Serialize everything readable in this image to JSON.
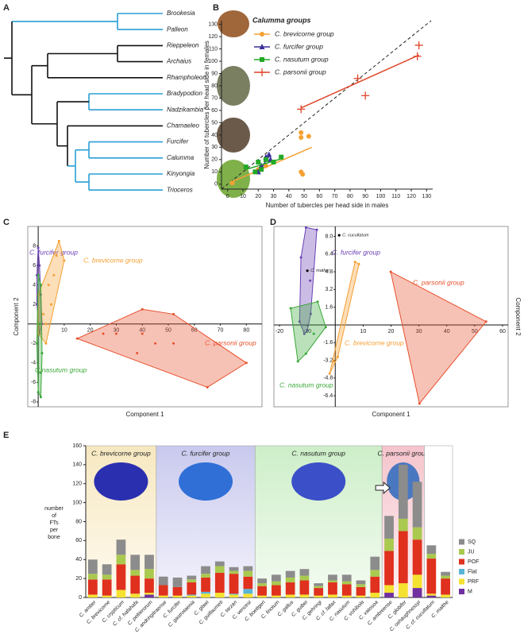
{
  "tree": {
    "label": "A",
    "taxa": [
      "Brookesia",
      "Palleon",
      "Rieppeleon",
      "Archaius",
      "Rhampholeon",
      "Bradypodion",
      "Nadzikambia*",
      "Chamaeleo",
      "Furcifer",
      "Calumma",
      "Kinyongia",
      "Trioceros"
    ]
  },
  "chart_data": [
    {
      "type": "scatter",
      "label": "B",
      "legend_title": "Calumma groups",
      "xlabel": "Number of tubercles per head side in males",
      "ylabel": "Number of tubercles per head side in females",
      "xlim": [
        -4,
        134
      ],
      "ylim": [
        -4,
        133
      ],
      "xticks": [
        0,
        10,
        20,
        30,
        40,
        50,
        60,
        70,
        80,
        90,
        100,
        110,
        120,
        130
      ],
      "yticks": [
        0,
        10,
        20,
        30,
        40,
        50,
        60,
        70,
        80,
        90,
        100,
        110,
        120,
        130
      ],
      "series": [
        {
          "name": "C. brevicorne group",
          "color": "#f5a033",
          "marker": "circle",
          "x": [
            3,
            20,
            25,
            48,
            48,
            53,
            48,
            49
          ],
          "values": [
            1,
            12,
            15,
            42,
            38,
            39,
            10,
            8
          ],
          "fit": {
            "x": [
              3,
              55
            ],
            "y": [
              2,
              30
            ]
          }
        },
        {
          "name": "C. furcifer group",
          "color": "#3b2f9a",
          "marker": "triangle",
          "x": [
            20,
            22,
            25,
            27,
            28
          ],
          "values": [
            10,
            15,
            22,
            24,
            20
          ],
          "fit": {
            "x": [
              20,
              28
            ],
            "y": [
              10,
              24
            ]
          }
        },
        {
          "name": "C. nasutum group",
          "color": "#22a826",
          "marker": "square",
          "x": [
            12,
            18,
            20,
            22,
            25,
            30,
            35
          ],
          "values": [
            14,
            10,
            18,
            12,
            20,
            18,
            22
          ],
          "fit": {
            "x": [
              12,
              36
            ],
            "y": [
              12,
              21
            ]
          }
        },
        {
          "name": "C. parsonii group",
          "color": "#e0452a",
          "marker": "plus",
          "x": [
            48,
            85,
            90,
            124,
            125
          ],
          "values": [
            61,
            86,
            72,
            104,
            113
          ],
          "fit": {
            "x": [
              48,
              125
            ],
            "y": [
              62,
              105
            ]
          }
        }
      ]
    },
    {
      "type": "pca",
      "label": "C",
      "xlabel": "Component 1",
      "ylabel": "Component 2",
      "xlim": [
        -4,
        86
      ],
      "ylim": [
        -8.5,
        10
      ],
      "xticks": [
        0,
        10,
        20,
        30,
        40,
        50,
        60,
        70,
        80
      ],
      "yticks": [
        8,
        6,
        4,
        2,
        -2,
        -4,
        -6,
        -8
      ],
      "series": [
        {
          "name": "C. furcifer group",
          "color": "#6a3fb5",
          "x": [
            0,
            0.5,
            1,
            1.5,
            0.5,
            -0.5,
            -0.5
          ],
          "values": [
            7.8,
            6,
            3,
            0,
            -1,
            2,
            5
          ]
        },
        {
          "name": "C. brevicorne group",
          "color": "#f5a033",
          "x": [
            8,
            10,
            3,
            0,
            0,
            4,
            5,
            6,
            2,
            7,
            3
          ],
          "values": [
            8.5,
            6.5,
            -2,
            -1,
            3,
            4,
            2,
            5,
            1,
            7,
            0
          ]
        },
        {
          "name": "C. parsonii group",
          "color": "#e8502d",
          "x": [
            15,
            40,
            52,
            80,
            65,
            40,
            45,
            52,
            38,
            30,
            25
          ],
          "values": [
            -1.5,
            1.5,
            1,
            -4,
            -6.5,
            -1,
            -2,
            -2,
            -3,
            -1,
            -1
          ]
        },
        {
          "name": "C.nasutum group",
          "color": "#3aa83a",
          "x": [
            1,
            0,
            -0.5,
            0,
            1,
            1.5,
            0.5,
            0.8
          ],
          "values": [
            -7.5,
            -7,
            -2,
            5,
            4,
            -3,
            0,
            -5
          ]
        }
      ]
    },
    {
      "type": "pca",
      "label": "D",
      "xlabel": "Component 1",
      "ylabel": "Component 2",
      "xlim": [
        -22,
        62
      ],
      "ylim": [
        -7.4,
        8.9
      ],
      "xticks": [
        -20,
        -10,
        10,
        20,
        30,
        40,
        50,
        60
      ],
      "yticks": [
        {
          "value": 8,
          "label": "8.0"
        },
        6.4,
        4.8,
        3.2,
        1.6,
        -1.6,
        -3.2,
        -4.8,
        -6.4
      ],
      "series": [
        {
          "name": "C. furcifer group",
          "color": "#6a3fb5",
          "x": [
            -10.5,
            -6.6,
            -8.8,
            -11.1,
            -12.8,
            -12.3,
            -9,
            -10
          ],
          "values": [
            8.8,
            8.6,
            1.0,
            -0.8,
            0.3,
            6.1,
            4,
            -0.5
          ]
        },
        {
          "name": "C. brevicorne group",
          "color": "#f5a033",
          "x": [
            7.1,
            8.5,
            0.9,
            -0.6,
            -2.0
          ],
          "values": [
            5.7,
            5.5,
            -2.9,
            -3.3,
            -4.4
          ]
        },
        {
          "name": "C. parsonii group",
          "color": "#e8502d",
          "x": [
            19.9,
            54.1,
            30.2
          ],
          "values": [
            4.8,
            0.3,
            -7.1
          ]
        },
        {
          "name": "C. nasutum group",
          "color": "#3aa83a",
          "x": [
            -16,
            -6.3,
            -3.4,
            -7.7,
            -10.5,
            -13.4
          ],
          "values": [
            1.5,
            2.1,
            -0.2,
            -0.8,
            -2.6,
            -3.3
          ]
        }
      ],
      "annotations": [
        {
          "text": "C. cucullatum",
          "x": 1.4,
          "y": 8.1
        },
        {
          "text": "C. mathei",
          "x": -10,
          "y": 4.9
        }
      ]
    },
    {
      "type": "stacked_bar",
      "label": "E",
      "ylabel": [
        "number",
        "of",
        "FTs",
        "per",
        "bone"
      ],
      "ylim": [
        0,
        160
      ],
      "yticks": [
        0,
        20,
        40,
        60,
        80,
        100,
        120,
        140,
        160
      ],
      "groups": [
        "C. brevicorne group",
        "C. furcifer group",
        "C. nasutum group",
        "C. parsonii group"
      ],
      "categories": [
        "C. amber",
        "C. brevicorne",
        "C. crypticum",
        "C. cf. hafahafa",
        "C. peltierorum",
        "C. andringitraense",
        "C. furcifer",
        "C. gastrotaenia",
        "C. glawi",
        "C. guillaumeti",
        "C. tarzan",
        "C. vencesi",
        "C. boettgeri",
        "C. linotum",
        "C. gallus",
        "C. guibei",
        "C. gehringi",
        "C. cf. fallax",
        "C. nasutum",
        "C. vohibola",
        "C. vatosoa",
        "C. ambreense",
        "C. globifer",
        "C. oshaughnessyi",
        "C. cf. cucullatum",
        "C. malthe"
      ],
      "series": [
        {
          "name": "M",
          "color": "#7030a0",
          "values": [
            0,
            0,
            0,
            0,
            3,
            0,
            0,
            0,
            0,
            0,
            0,
            0,
            0,
            0,
            0,
            0,
            0,
            0,
            0,
            0,
            0,
            5,
            0,
            10,
            2,
            0
          ]
        },
        {
          "name": "PRF",
          "color": "#f5e130",
          "values": [
            3,
            2,
            8,
            4,
            2,
            2,
            2,
            2,
            4,
            5,
            3,
            4,
            2,
            2,
            3,
            3,
            2,
            3,
            2,
            2,
            5,
            8,
            15,
            14,
            2,
            3
          ]
        },
        {
          "name": "Flat",
          "color": "#5ab4d6",
          "values": [
            0,
            0,
            0,
            0,
            0,
            0,
            0,
            1,
            2,
            0,
            1,
            5,
            0,
            0,
            0,
            0,
            0,
            0,
            0,
            0,
            0,
            0,
            0,
            0,
            0,
            0
          ]
        },
        {
          "name": "POF",
          "color": "#e0301e",
          "values": [
            16,
            17,
            27,
            19,
            15,
            11,
            9,
            13,
            15,
            21,
            21,
            13,
            10,
            11,
            13,
            15,
            8,
            13,
            12,
            9,
            17,
            36,
            55,
            37,
            37,
            17
          ]
        },
        {
          "name": "JU",
          "color": "#a9c94f",
          "values": [
            6,
            5,
            10,
            6,
            10,
            0,
            0,
            3,
            4,
            7,
            3,
            6,
            3,
            4,
            5,
            5,
            2,
            2,
            3,
            3,
            7,
            13,
            13,
            13,
            5,
            3
          ]
        },
        {
          "name": "SQ",
          "color": "#8c8c8c",
          "values": [
            15,
            11,
            16,
            16,
            15,
            9,
            10,
            4,
            8,
            5,
            4,
            5,
            5,
            7,
            7,
            7,
            3,
            6,
            7,
            4,
            14,
            24,
            57,
            48,
            9,
            4
          ]
        }
      ]
    }
  ]
}
